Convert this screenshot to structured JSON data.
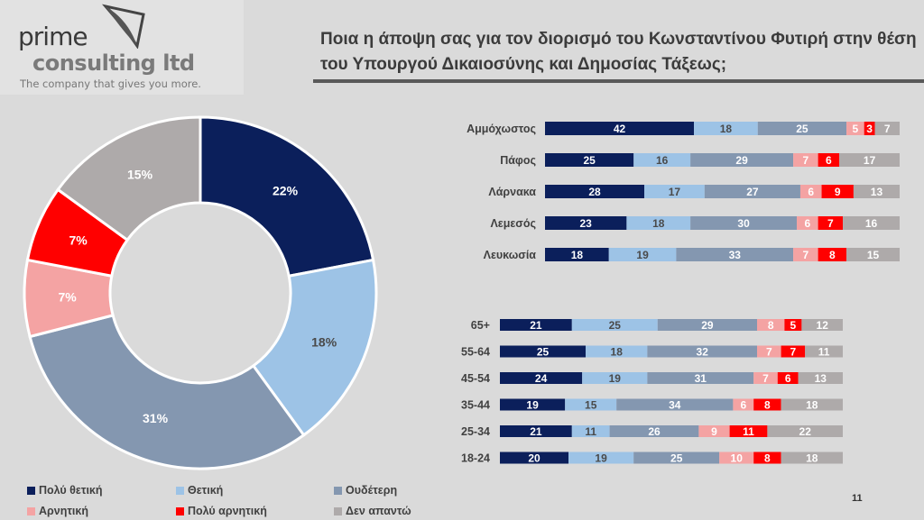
{
  "logo": {
    "line1": "prime",
    "line2": "consulting ltd",
    "tagline": "The company that gives you more."
  },
  "title": {
    "line1": "Ποια η άποψη σας για τον διορισμό του Κωνσταντίνου Φυτιρή στην θέση",
    "line2": "του Υπουργού Δικαιοσύνης και Δημοσίας Τάξεως;"
  },
  "page_number": "11",
  "colors": [
    "#0b1f5b",
    "#9dc3e6",
    "#8497b0",
    "#f4a3a3",
    "#ff0000",
    "#aeaaaa"
  ],
  "label_colors": [
    "#ffffff",
    "#4a4a4a",
    "#ffffff",
    "#ffffff",
    "#ffffff",
    "#ffffff"
  ],
  "chart_data": [
    {
      "type": "pie",
      "variant": "donut",
      "categories": [
        "Πολύ θετική",
        "Θετική",
        "Ουδέτερη",
        "Αρνητική",
        "Πολύ αρνητική",
        "Δεν απαντώ"
      ],
      "values": [
        22,
        18,
        31,
        7,
        7,
        15
      ],
      "labels": [
        "22%",
        "18%",
        "31%",
        "7%",
        "7%",
        "15%"
      ],
      "legend": "bottom"
    },
    {
      "type": "bar",
      "orientation": "horizontal",
      "stacked": true,
      "categories": [
        "Αμμόχωστος",
        "Πάφος",
        "Λάρνακα",
        "Λεμεσός",
        "Λευκωσία"
      ],
      "series_names": [
        "Πολύ θετική",
        "Θετική",
        "Ουδέτερη",
        "Αρνητική",
        "Πολύ αρνητική",
        "Δεν απαντώ"
      ],
      "values": [
        [
          42,
          18,
          25,
          5,
          3,
          7
        ],
        [
          25,
          16,
          29,
          7,
          6,
          17
        ],
        [
          28,
          17,
          27,
          6,
          9,
          13
        ],
        [
          23,
          18,
          30,
          6,
          7,
          16
        ],
        [
          18,
          19,
          33,
          7,
          8,
          15
        ]
      ]
    },
    {
      "type": "bar",
      "orientation": "horizontal",
      "stacked": true,
      "categories": [
        "65+",
        "55-64",
        "45-54",
        "35-44",
        "25-34",
        "18-24"
      ],
      "series_names": [
        "Πολύ θετική",
        "Θετική",
        "Ουδέτερη",
        "Αρνητική",
        "Πολύ αρνητική",
        "Δεν απαντώ"
      ],
      "values": [
        [
          21,
          25,
          29,
          8,
          5,
          12
        ],
        [
          25,
          18,
          32,
          7,
          7,
          11
        ],
        [
          24,
          19,
          31,
          7,
          6,
          13
        ],
        [
          19,
          15,
          34,
          6,
          8,
          18
        ],
        [
          21,
          11,
          26,
          9,
          11,
          22
        ],
        [
          20,
          19,
          25,
          10,
          8,
          18
        ]
      ]
    }
  ]
}
